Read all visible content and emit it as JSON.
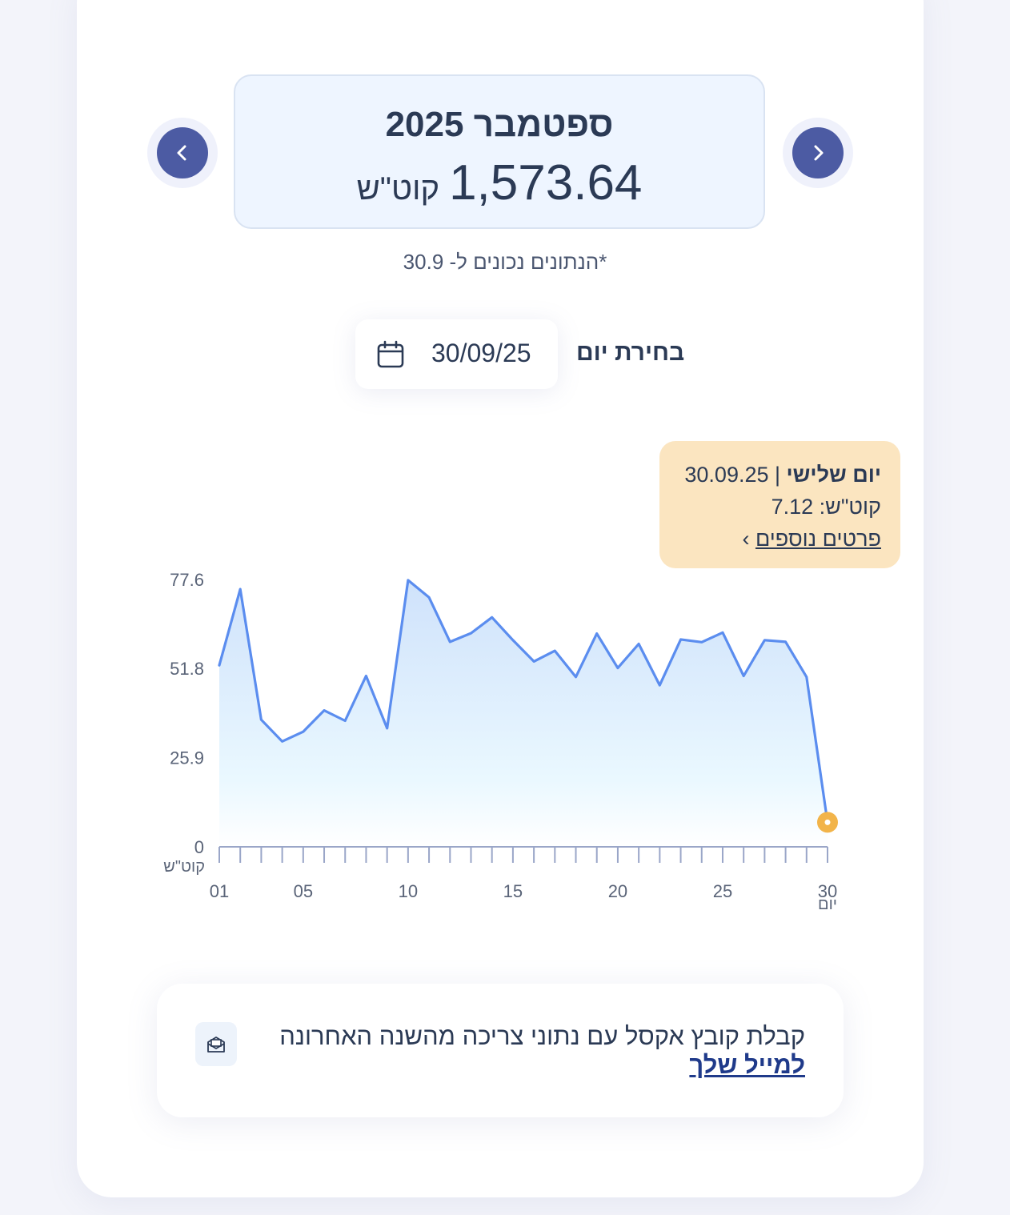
{
  "summary": {
    "month_title": "ספטמבר 2025",
    "total_value": "1,573.64",
    "unit": "קוט\"ש",
    "note": "*הנתונים נכונים ל- 30.9"
  },
  "day_picker": {
    "label": "בחירת יום",
    "date": "30/09/25"
  },
  "tooltip": {
    "day_name": "יום שלישי",
    "separator": " | ",
    "date": "30.09.25",
    "value_line": "קוט\"ש: 7.12",
    "details_link": "פרטים נוספים",
    "arrow": "›"
  },
  "chart_data": {
    "type": "area",
    "x": [
      1,
      2,
      3,
      4,
      5,
      6,
      7,
      8,
      9,
      10,
      11,
      12,
      13,
      14,
      15,
      16,
      17,
      18,
      19,
      20,
      21,
      22,
      23,
      24,
      25,
      26,
      27,
      28,
      29,
      30
    ],
    "values": [
      52.7,
      74.8,
      36.9,
      30.6,
      33.4,
      39.6,
      36.6,
      49.6,
      34.4,
      77.4,
      72.4,
      59.5,
      62.0,
      66.6,
      60.0,
      53.8,
      56.9,
      49.3,
      61.9,
      51.9,
      58.9,
      46.9,
      60.2,
      59.4,
      62.2,
      49.6,
      60.0,
      59.5,
      49.3,
      7.12
    ],
    "highlight_index": 29,
    "y_ticks": [
      "0",
      "25.9",
      "51.8",
      "77.6"
    ],
    "x_tick_labels": [
      "01",
      "05",
      "10",
      "15",
      "20",
      "25",
      "30"
    ],
    "ylabel": "קוט\"ש",
    "xlabel": "יום",
    "ylim": [
      0,
      77.6
    ],
    "colors": {
      "line": "#5b8def",
      "fill_top": "#cfe2fb",
      "fill_bottom": "#ffffff",
      "highlight": "#f2b44a"
    }
  },
  "excel": {
    "text": "קבלת קובץ אקסל עם נתוני צריכה מהשנה האחרונה",
    "link": "למייל שלך"
  },
  "icons": {
    "prev": "chevron-left-icon",
    "next": "chevron-right-icon",
    "calendar": "calendar-icon",
    "mail": "mail-icon"
  }
}
